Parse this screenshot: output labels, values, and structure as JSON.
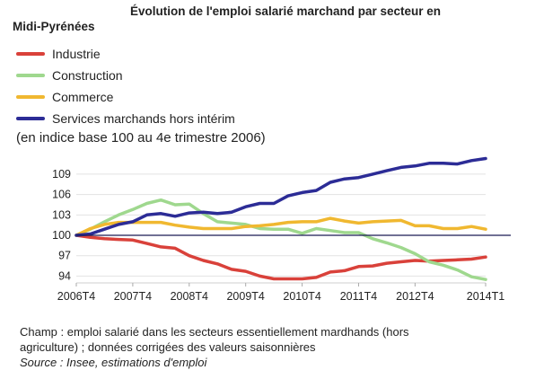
{
  "title_line1": "Évolution de l'emploi salarié marchand par secteur en",
  "title_line2": "Midi-Pyrénées",
  "subtitle": "(en indice base 100 au 4e trimestre 2006)",
  "note_line1": "Champ : emploi salarié dans les secteurs essentiellement mardhands (hors",
  "note_line2": "agriculture) ; données corrigées des valeurs saisonnières",
  "source": "Source : Insee, estimations d'emploi",
  "chart_data": {
    "type": "line",
    "x": [
      "2006T4",
      "2007T1",
      "2007T2",
      "2007T3",
      "2007T4",
      "2008T1",
      "2008T2",
      "2008T3",
      "2008T4",
      "2009T1",
      "2009T2",
      "2009T3",
      "2009T4",
      "2010T1",
      "2010T2",
      "2010T3",
      "2010T4",
      "2011T1",
      "2011T2",
      "2011T3",
      "2011T4",
      "2012T1",
      "2012T2",
      "2012T3",
      "2012T4",
      "2013T1",
      "2013T2",
      "2013T3",
      "2013T4",
      "2014T1"
    ],
    "xtick_labels": [
      "2006T4",
      "2007T4",
      "2008T4",
      "2009T4",
      "2010T4",
      "2011T4",
      "2012T4",
      "2014T1"
    ],
    "xtick_indices": [
      0,
      4,
      8,
      12,
      16,
      20,
      24,
      29
    ],
    "yticks": [
      94,
      97,
      100,
      103,
      106,
      109
    ],
    "ylim": [
      93,
      111.5
    ],
    "baseline": 100,
    "grid": "horizontal",
    "legend_position": "top-left",
    "series": [
      {
        "name": "Industrie",
        "color": "#d9413a",
        "values": [
          100,
          99.7,
          99.5,
          99.4,
          99.3,
          98.8,
          98.3,
          98.1,
          97.0,
          96.3,
          95.8,
          95.0,
          94.7,
          94.0,
          93.6,
          93.6,
          93.6,
          93.8,
          94.6,
          94.8,
          95.4,
          95.5,
          95.9,
          96.1,
          96.3,
          96.2,
          96.3,
          96.4,
          96.5,
          96.8
        ]
      },
      {
        "name": "Construction",
        "color": "#9fd88e",
        "values": [
          100,
          100.9,
          102.0,
          103.0,
          103.8,
          104.7,
          105.2,
          104.5,
          104.6,
          103.2,
          102.0,
          101.8,
          101.6,
          101.0,
          100.9,
          100.9,
          100.3,
          101.0,
          100.7,
          100.4,
          100.4,
          99.5,
          98.9,
          98.2,
          97.3,
          96.1,
          95.6,
          94.9,
          93.9,
          93.5
        ]
      },
      {
        "name": "Commerce",
        "color": "#f0b830",
        "values": [
          100,
          101.0,
          101.6,
          101.9,
          101.9,
          101.9,
          101.9,
          101.5,
          101.2,
          101.0,
          101.0,
          101.0,
          101.3,
          101.4,
          101.6,
          101.9,
          102.0,
          102.0,
          102.5,
          102.1,
          101.8,
          102.0,
          102.1,
          102.2,
          101.4,
          101.4,
          101.0,
          101.0,
          101.3,
          100.9
        ]
      },
      {
        "name": "Services marchands hors intérim",
        "color": "#2c2c96",
        "values": [
          100,
          100.2,
          100.9,
          101.6,
          102.0,
          103.0,
          103.2,
          102.8,
          103.3,
          103.4,
          103.2,
          103.4,
          104.2,
          104.7,
          104.7,
          105.8,
          106.3,
          106.6,
          107.8,
          108.3,
          108.5,
          109.0,
          109.5,
          110.0,
          110.2,
          110.6,
          110.6,
          110.5,
          111.0,
          111.3
        ]
      }
    ]
  }
}
